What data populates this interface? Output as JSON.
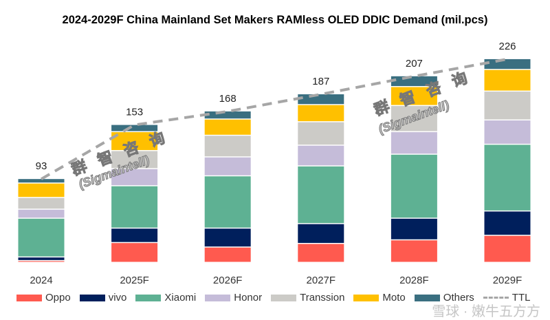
{
  "chart_data": {
    "type": "bar",
    "stacked": true,
    "title": "2024-2029F China Mainland Set Makers RAMless OLED DDIC Demand (mil.pcs)",
    "categories": [
      "2024",
      "2025F",
      "2026F",
      "2027F",
      "2028F",
      "2029F"
    ],
    "series": [
      {
        "name": "Oppo",
        "color": "#ff5a4f",
        "values": [
          2,
          22,
          17,
          21,
          25,
          30
        ]
      },
      {
        "name": "vivo",
        "color": "#001f5c",
        "values": [
          4,
          16,
          21,
          22,
          24,
          27
        ]
      },
      {
        "name": "Xiaomi",
        "color": "#5eb193",
        "values": [
          43,
          47,
          58,
          64,
          71,
          74
        ]
      },
      {
        "name": "Honor",
        "color": "#c5bcd9",
        "values": [
          10,
          19,
          21,
          23,
          25,
          27
        ]
      },
      {
        "name": "Transsion",
        "color": "#cccbc7",
        "values": [
          13,
          20,
          24,
          26,
          29,
          32
        ]
      },
      {
        "name": "Moto",
        "color": "#ffc000",
        "values": [
          16,
          21,
          18,
          19,
          21,
          24
        ]
      },
      {
        "name": "Others",
        "color": "#3a6f80",
        "values": [
          5,
          8,
          9,
          12,
          12,
          12
        ]
      }
    ],
    "total": {
      "name": "TTL",
      "color": "#a6a6a6",
      "style": "dashed",
      "values": [
        93,
        153,
        168,
        187,
        207,
        226
      ],
      "labels": [
        "93",
        "153",
        "168",
        "187",
        "207",
        "226"
      ]
    },
    "ylim": [
      0,
      240
    ],
    "grid": false,
    "legend": "bottom"
  },
  "watermarks": {
    "cn": "群 智 咨 询",
    "en": "(Sigmaintell)",
    "bottom": "雪球 · 嫩牛五方方"
  }
}
